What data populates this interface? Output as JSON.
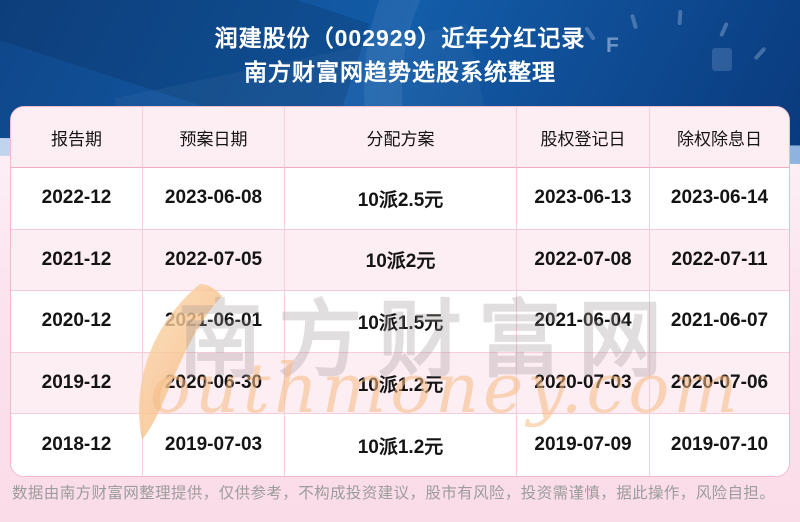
{
  "page": {
    "title_line1": "润建股份（002929）近年分红记录",
    "title_line2": "南方财富网趋势选股系统整理",
    "disclaimer": "数据由南方财富网整理提供，仅供参考，不构成投资建议，股市有风险，投资需谨慎，据此操作，风险自担。"
  },
  "chart_data": {
    "type": "table",
    "title": "润建股份（002929）近年分红记录",
    "subtitle": "南方财富网趋势选股系统整理",
    "columns": [
      "报告期",
      "预案日期",
      "分配方案",
      "股权登记日",
      "除权除息日"
    ],
    "rows": [
      [
        "2022-12",
        "2023-06-08",
        "10派2.5元",
        "2023-06-13",
        "2023-06-14"
      ],
      [
        "2021-12",
        "2022-07-05",
        "10派2元",
        "2022-07-08",
        "2022-07-11"
      ],
      [
        "2020-12",
        "2021-06-01",
        "10派1.5元",
        "2021-06-04",
        "2021-06-07"
      ],
      [
        "2019-12",
        "2020-06-30",
        "10派1.2元",
        "2020-07-03",
        "2020-07-06"
      ],
      [
        "2018-12",
        "2019-07-03",
        "10派1.2元",
        "2019-07-09",
        "2019-07-10"
      ]
    ],
    "layout_hints": {
      "row_striping": "white / light-pink alternating",
      "grid": true
    }
  },
  "watermark": {
    "cn": "南方财富网",
    "en": "outhmoney.com"
  },
  "hero_decor": {
    "gauge_full_label": "F"
  },
  "colors": {
    "header_blue_mid": "#135ca8",
    "header_blue_dark": "#0a3a7d",
    "accent_light_blue": "#a6c4e9",
    "page_pink": "#fbe2ec",
    "row_pink": "#fdeef4",
    "grid_pink": "#f8ccd9",
    "watermark_gray": "#9f9496",
    "watermark_orange": "#f6bc84",
    "title_white": "#ffffff",
    "disclaimer_gray": "#9c9c9c"
  }
}
